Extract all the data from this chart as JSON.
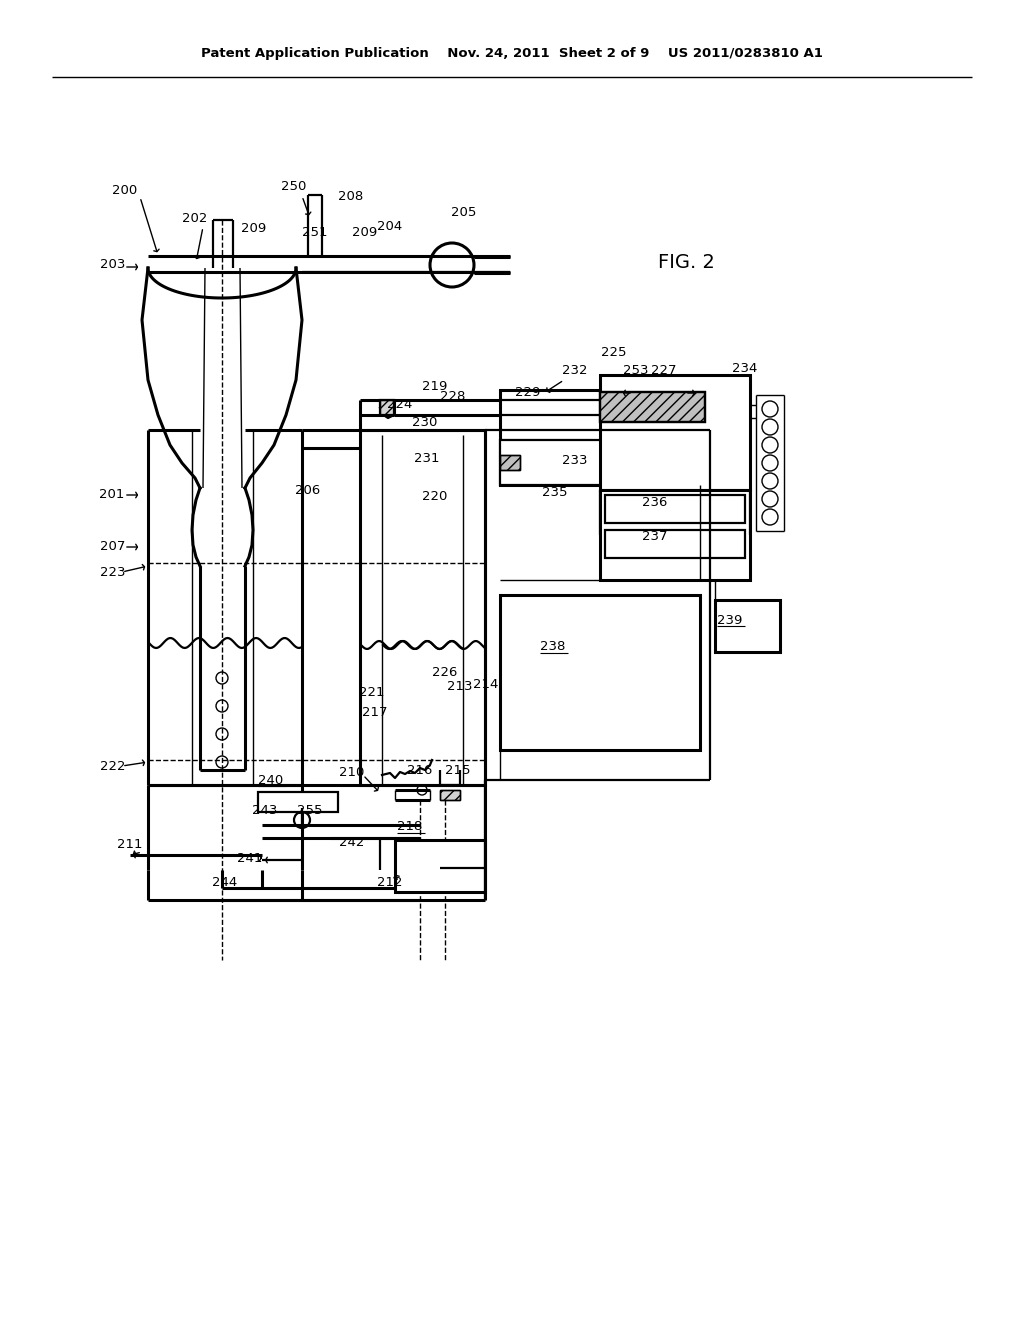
{
  "bg_color": "#ffffff",
  "header": "Patent Application Publication    Nov. 24, 2011  Sheet 2 of 9    US 2011/0283810 A1",
  "fig_label": "FIG. 2"
}
